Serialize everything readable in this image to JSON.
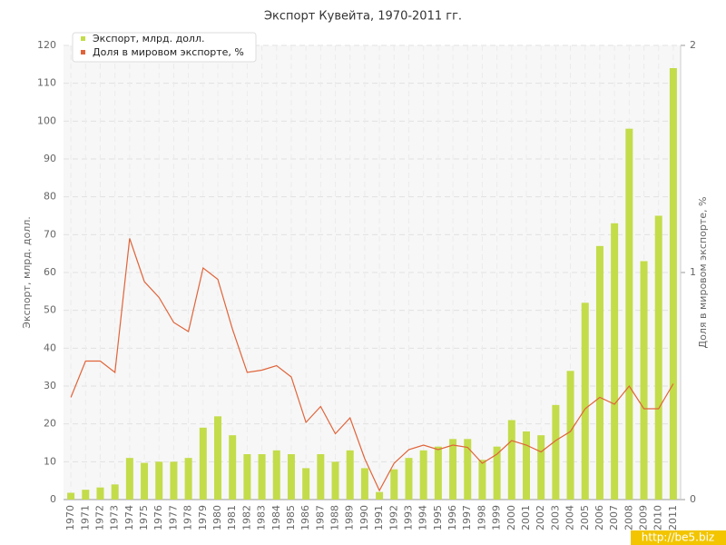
{
  "chart_data": {
    "type": "bar_line",
    "title": "Экспорт Кувейта, 1970-2011 гг.",
    "y_label": "Экспорт, млрд. долл.",
    "y2_label": "Доля в мировом экспорте, %",
    "categories": [
      "1970",
      "1971",
      "1972",
      "1973",
      "1974",
      "1975",
      "1976",
      "1977",
      "1978",
      "1979",
      "1980",
      "1981",
      "1982",
      "1983",
      "1984",
      "1985",
      "1986",
      "1987",
      "1988",
      "1989",
      "1990",
      "1991",
      "1992",
      "1993",
      "1994",
      "1995",
      "1996",
      "1997",
      "1998",
      "1999",
      "2000",
      "2001",
      "2002",
      "2003",
      "2004",
      "2005",
      "2006",
      "2007",
      "2008",
      "2009",
      "2010",
      "2011"
    ],
    "series": [
      {
        "name": "Экспорт, млрд. долл.",
        "color": "#c3dc4a",
        "kind": "bar",
        "values": [
          1.8,
          2.6,
          3.2,
          4,
          11,
          9.7,
          10,
          10,
          11,
          19,
          22,
          17,
          12,
          12,
          13,
          12,
          8.3,
          12,
          10,
          13,
          8.3,
          2,
          8,
          11,
          13,
          14,
          16,
          16,
          10.5,
          14,
          21,
          18,
          17,
          25,
          34,
          52,
          67,
          73,
          98,
          63,
          75,
          114
        ]
      },
      {
        "name": "Доля в мировом экспорте, %",
        "color": "#e0643a",
        "kind": "line",
        "axis": "y2",
        "values": [
          0.45,
          0.61,
          0.61,
          0.56,
          1.15,
          0.96,
          0.89,
          0.78,
          0.74,
          1.02,
          0.97,
          0.75,
          0.56,
          0.57,
          0.59,
          0.54,
          0.34,
          0.41,
          0.29,
          0.36,
          0.18,
          0.04,
          0.16,
          0.22,
          0.24,
          0.22,
          0.24,
          0.23,
          0.16,
          0.2,
          0.26,
          0.24,
          0.21,
          0.26,
          0.3,
          0.4,
          0.45,
          0.42,
          0.5,
          0.4,
          0.4,
          0.51
        ]
      }
    ],
    "ylim": [
      0,
      120
    ],
    "yticks": [
      0,
      10,
      20,
      30,
      40,
      50,
      60,
      70,
      80,
      90,
      100,
      110,
      120
    ],
    "y2lim": [
      0,
      2
    ],
    "y2ticks": [
      0,
      1,
      2
    ],
    "grid": true
  },
  "watermark": "http://be5.biz"
}
